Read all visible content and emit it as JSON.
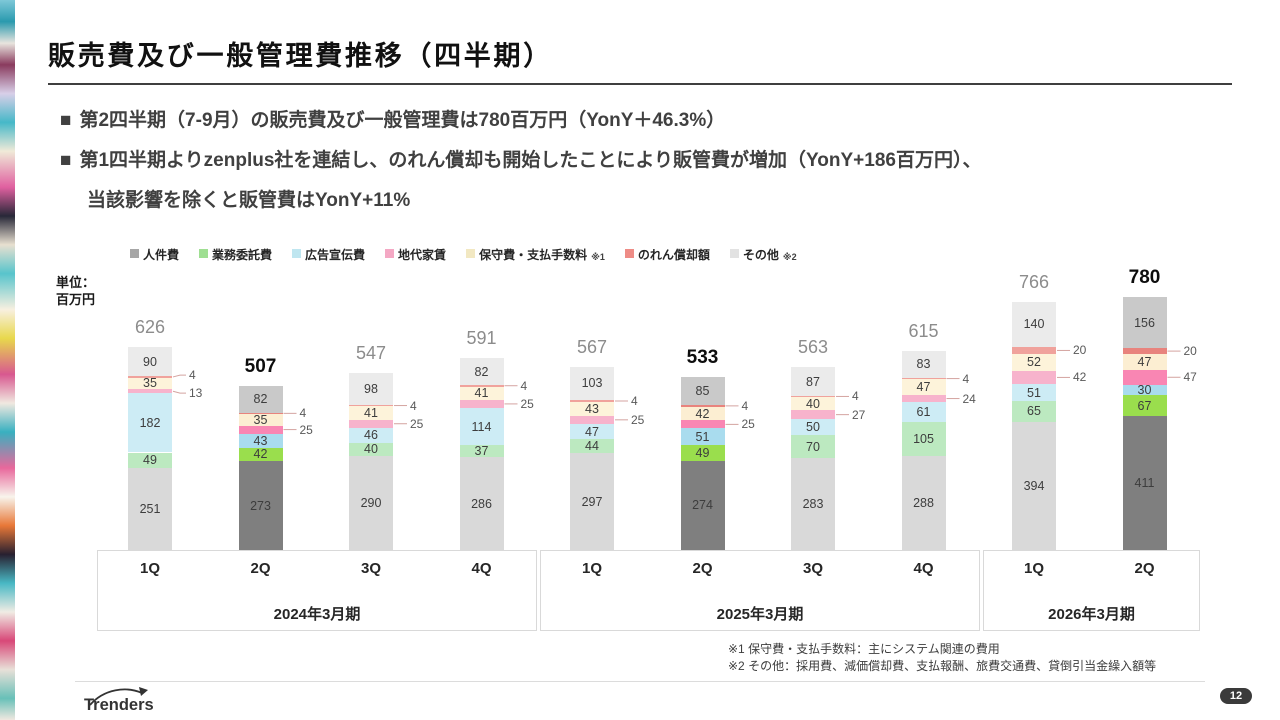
{
  "slide": {
    "title": "販売費及び一般管理費推移（四半期）",
    "bullet_marker": "■",
    "bullets": [
      "第2四半期（7-9月）の販売費及び一般管理費は780百万円（YonY＋46.3%）",
      "第1四半期よりzenplus社を連結し、のれん償却も開始したことにより販管費が増加（YonY+186百万円）、",
      "当該影響を除くと販管費はYonY+11%"
    ],
    "unit_label_line1": "単位：",
    "unit_label_line2": "百万円",
    "footnotes": [
      "※1 保守費・支払手数料：主にシステム関連の費用",
      "※2 その他：採用費、減価償却費、支払報酬、旅費交通費、貸倒引当金繰入額等"
    ],
    "logo_text": "Trenders",
    "page_number": "12"
  },
  "chart_data": {
    "type": "bar",
    "stacked": true,
    "unit": "百万円",
    "legend_position": "top",
    "series": [
      "人件費",
      "業務委託費",
      "広告宣伝費",
      "地代家賃",
      "保守費・支払手数料",
      "のれん償却額",
      "その他"
    ],
    "legend_notes": [
      "",
      "",
      "",
      "",
      "※1",
      "",
      "※2"
    ],
    "legend_colors": [
      "#a6a6a6",
      "#9fdf92",
      "#bfe6f0",
      "#f4a8c4",
      "#f2e8c2",
      "#ee8c86",
      "#e2e2e2"
    ],
    "colors_normal": [
      "#d9d9d9",
      "#bce9c0",
      "#cdecf5",
      "#f7b3cc",
      "#fdf3da",
      "#f0a29c",
      "#ebebeb"
    ],
    "colors_highlight": [
      "#7f7f7f",
      "#9ade4d",
      "#a9dcee",
      "#f986b3",
      "#fceed2",
      "#e8837d",
      "#c9c9c9"
    ],
    "callout_series": [
      3,
      5
    ],
    "groups": [
      {
        "label": "2024年3月期"
      },
      {
        "label": "2025年3月期"
      },
      {
        "label": "2026年3月期"
      }
    ],
    "bars": [
      {
        "group": 0,
        "quarter": "1Q",
        "total": 626,
        "highlight": false,
        "values": [
          251,
          49,
          182,
          13,
          35,
          4,
          90
        ]
      },
      {
        "group": 0,
        "quarter": "2Q",
        "total": 507,
        "highlight": true,
        "values": [
          273,
          42,
          43,
          25,
          35,
          4,
          82
        ]
      },
      {
        "group": 0,
        "quarter": "3Q",
        "total": 547,
        "highlight": false,
        "values": [
          290,
          40,
          46,
          25,
          41,
          4,
          98
        ]
      },
      {
        "group": 0,
        "quarter": "4Q",
        "total": 591,
        "highlight": false,
        "values": [
          286,
          37,
          114,
          25,
          41,
          4,
          82
        ]
      },
      {
        "group": 1,
        "quarter": "1Q",
        "total": 567,
        "highlight": false,
        "values": [
          297,
          44,
          47,
          25,
          43,
          4,
          103
        ]
      },
      {
        "group": 1,
        "quarter": "2Q",
        "total": 533,
        "highlight": true,
        "values": [
          274,
          49,
          51,
          25,
          42,
          4,
          85
        ]
      },
      {
        "group": 1,
        "quarter": "3Q",
        "total": 563,
        "highlight": false,
        "values": [
          283,
          70,
          50,
          27,
          40,
          4,
          87
        ]
      },
      {
        "group": 1,
        "quarter": "4Q",
        "total": 615,
        "highlight": false,
        "values": [
          288,
          105,
          61,
          24,
          47,
          4,
          83
        ]
      },
      {
        "group": 2,
        "quarter": "1Q",
        "total": 766,
        "highlight": false,
        "values": [
          394,
          65,
          51,
          42,
          52,
          20,
          140
        ]
      },
      {
        "group": 2,
        "quarter": "2Q",
        "total": 780,
        "highlight": true,
        "values": [
          411,
          67,
          30,
          47,
          47,
          20,
          156
        ]
      }
    ]
  }
}
